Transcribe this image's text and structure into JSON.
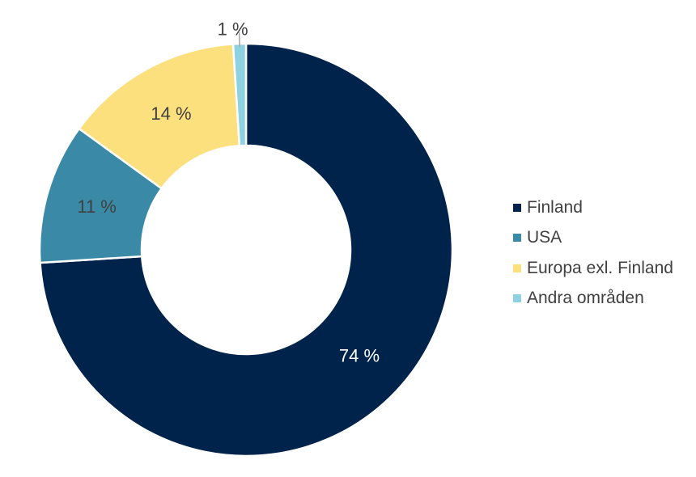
{
  "chart_data": {
    "type": "pie",
    "title": "",
    "categories": [
      "Finland",
      "USA",
      "Europa exl. Finland",
      "Andra områden"
    ],
    "values": [
      74,
      11,
      14,
      1
    ],
    "labels": [
      "74 %",
      "11 %",
      "14 %",
      "1 %"
    ],
    "colors": [
      "#00234B",
      "#3A89A6",
      "#FCE07E",
      "#8ED1E0"
    ],
    "label_colors": [
      "#FFFFFF",
      "#404040",
      "#404040",
      "#404040"
    ],
    "legend_position": "right",
    "donut": true
  }
}
